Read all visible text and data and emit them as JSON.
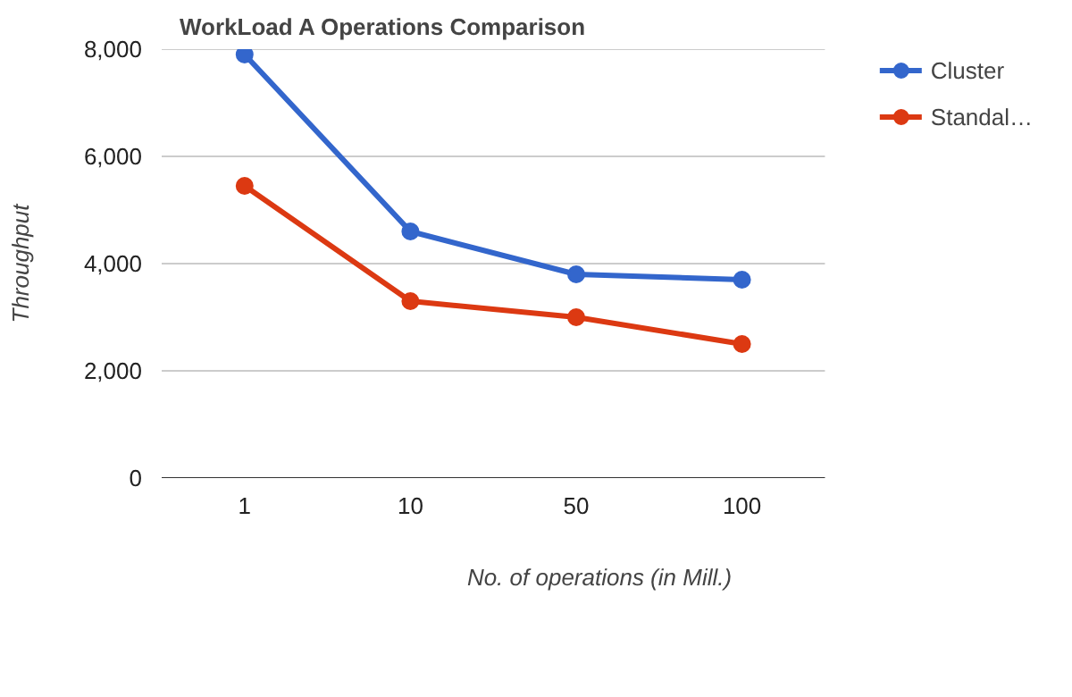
{
  "chart_data": {
    "type": "line",
    "title": "WorkLoad A Operations Comparison",
    "xlabel": "No. of operations (in Mill.)",
    "ylabel": "Throughput",
    "categories": [
      "1",
      "10",
      "50",
      "100"
    ],
    "series": [
      {
        "name": "Cluster",
        "color": "#3366cc",
        "values": [
          7900,
          4600,
          3800,
          3700
        ]
      },
      {
        "name": "Standal…",
        "color": "#dc3912",
        "values": [
          5450,
          3300,
          3000,
          2500
        ]
      }
    ],
    "ylim": [
      0,
      8000
    ],
    "yticks": [
      0,
      {
        "value": 2000,
        "label": "2,000"
      },
      {
        "value": 4000,
        "label": "4,000"
      },
      {
        "value": 6000,
        "label": "6,000"
      },
      {
        "value": 8000,
        "label": "8,000"
      }
    ],
    "grid": "y",
    "legend": "right",
    "marker": "circle",
    "line_style": "solid"
  }
}
